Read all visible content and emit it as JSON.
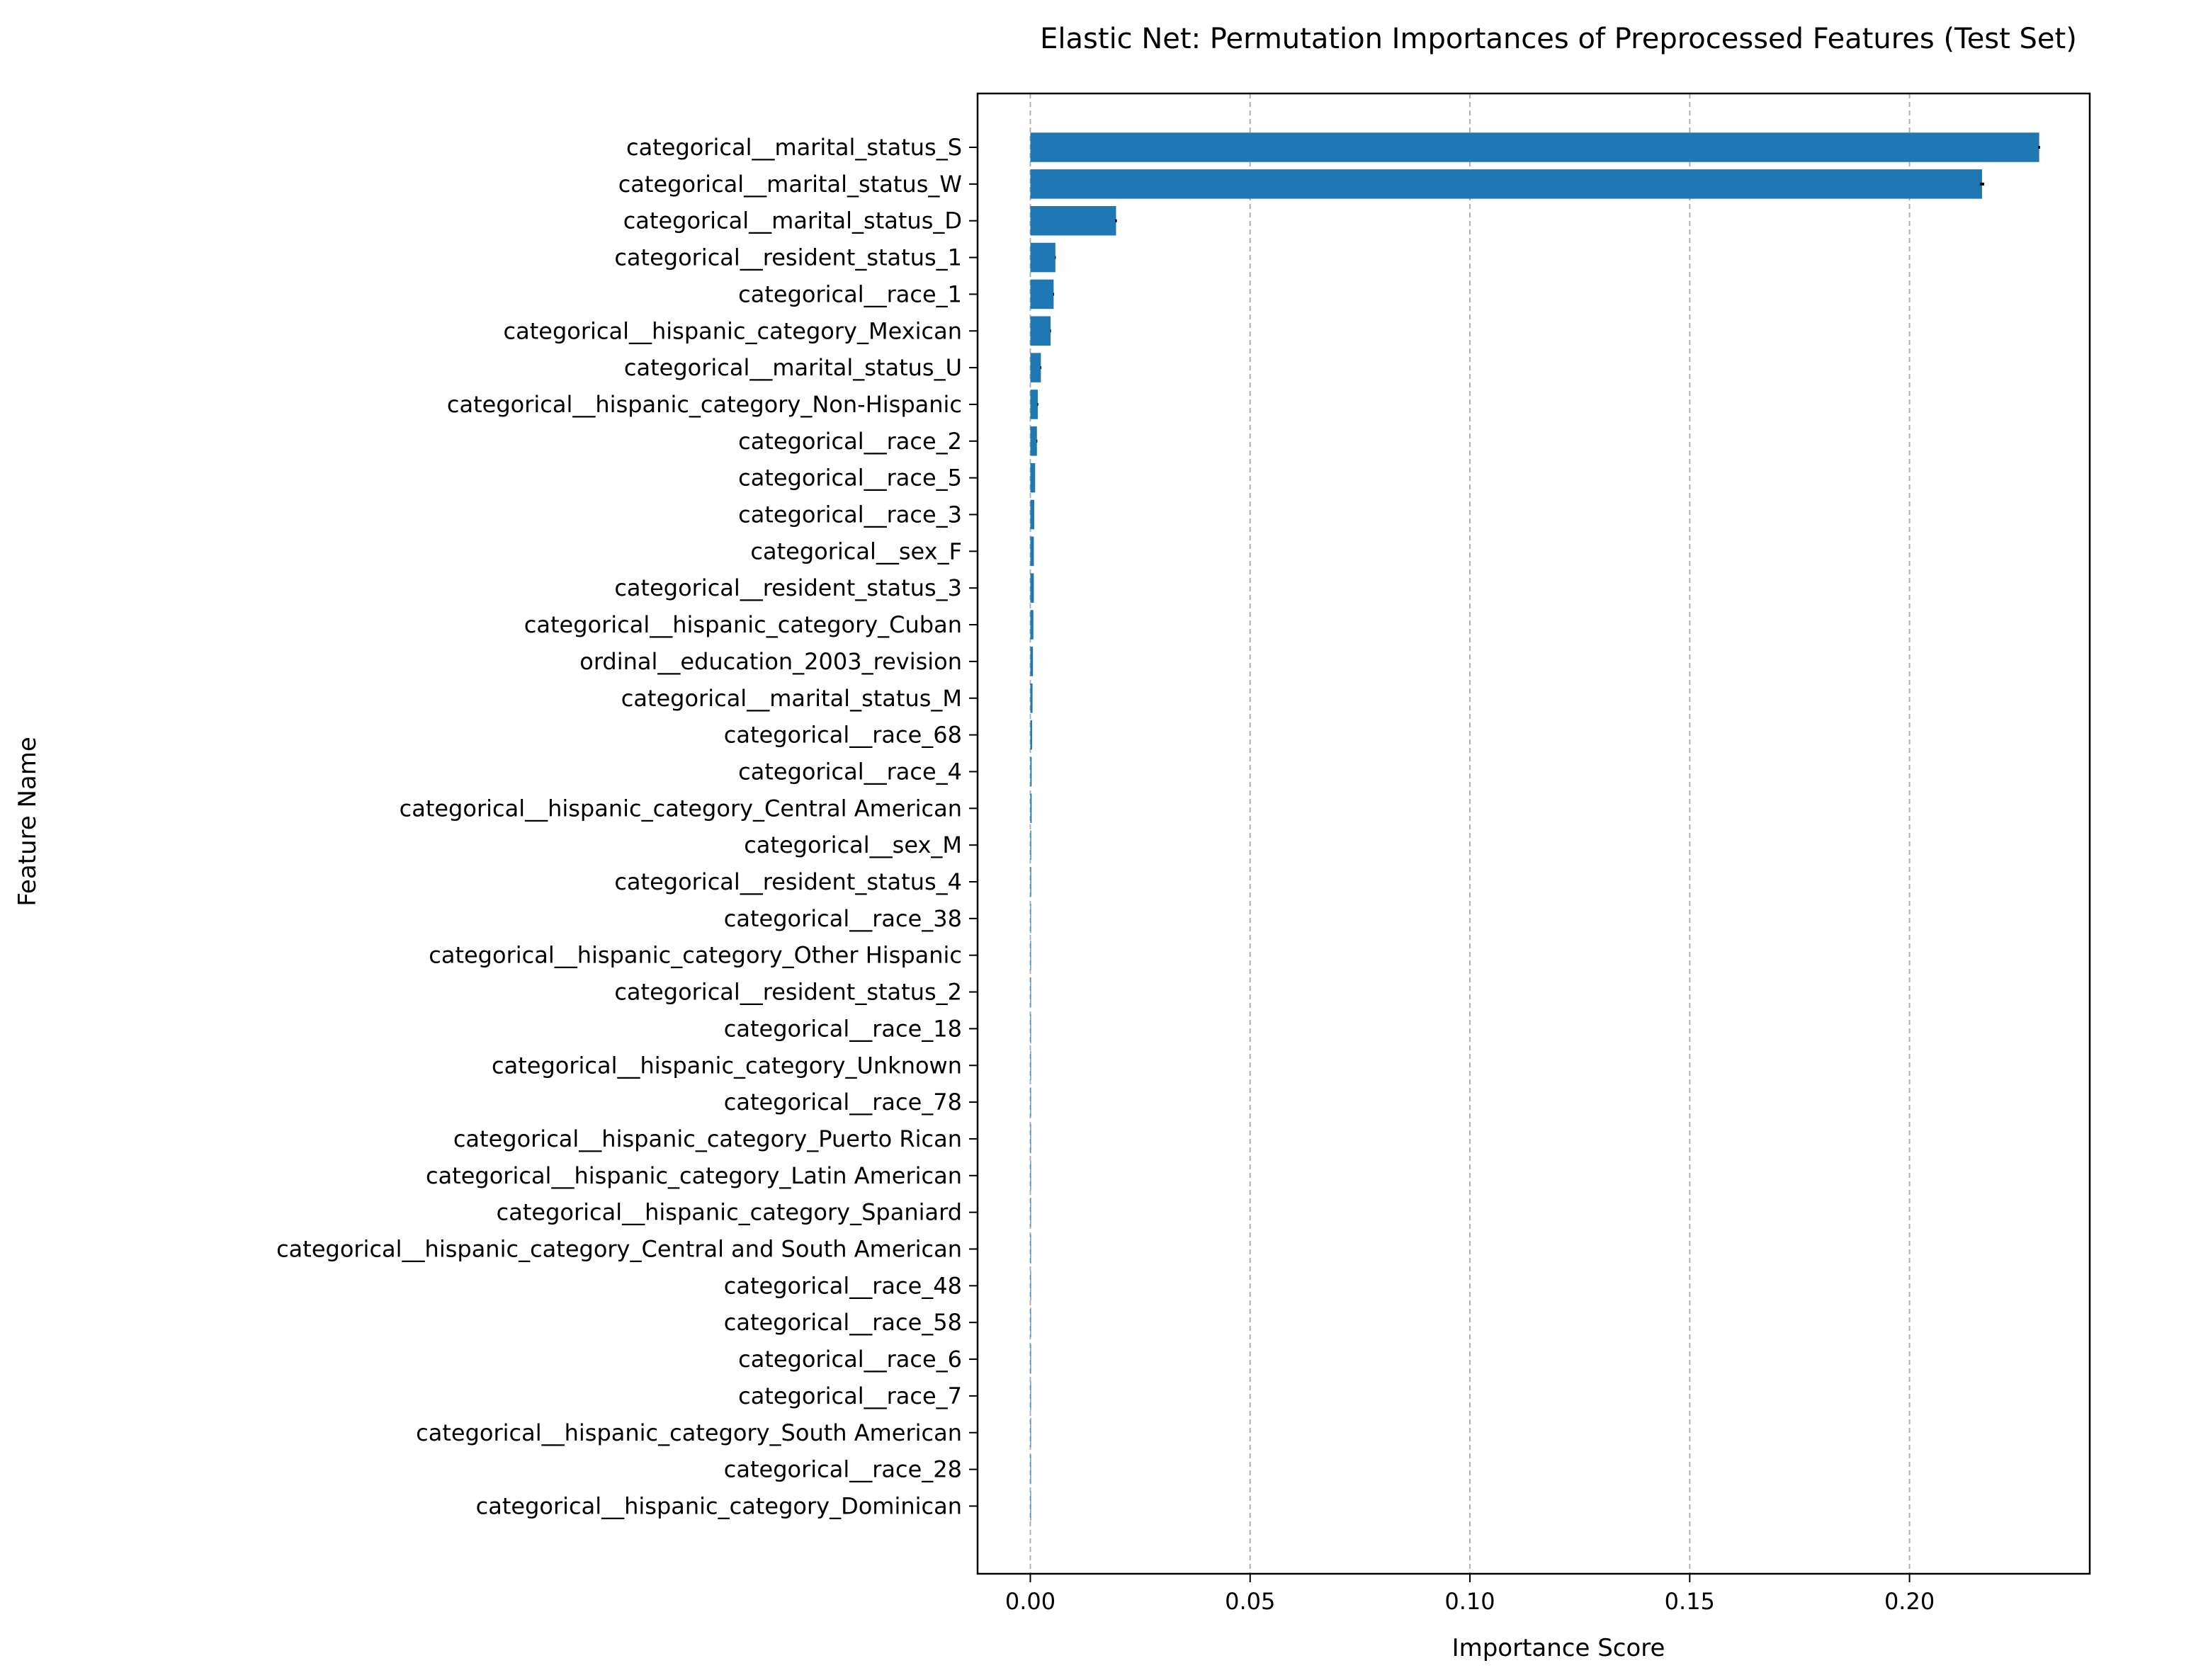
{
  "chart_data": {
    "type": "bar",
    "orientation": "horizontal",
    "title": "Elastic Net: Permutation Importances of Preprocessed Features (Test Set)",
    "xlabel": "Importance Score",
    "ylabel": "Feature Name",
    "xlim": [
      -0.012,
      0.241
    ],
    "xticks": [
      0.0,
      0.05,
      0.1,
      0.15,
      0.2
    ],
    "xtick_labels": [
      "0.00",
      "0.05",
      "0.10",
      "0.15",
      "0.20"
    ],
    "grid": {
      "axis": "x",
      "style": "dashed",
      "color": "#b0b0b0"
    },
    "bar_color": "#1f77b4",
    "errorbar_color": "#000000",
    "categories": [
      "categorical__marital_status_S",
      "categorical__marital_status_W",
      "categorical__marital_status_D",
      "categorical__resident_status_1",
      "categorical__race_1",
      "categorical__hispanic_category_Mexican",
      "categorical__marital_status_U",
      "categorical__hispanic_category_Non-Hispanic",
      "categorical__race_2",
      "categorical__race_5",
      "categorical__race_3",
      "categorical__sex_F",
      "categorical__resident_status_3",
      "categorical__hispanic_category_Cuban",
      "ordinal__education_2003_revision",
      "categorical__marital_status_M",
      "categorical__race_68",
      "categorical__race_4",
      "categorical__hispanic_category_Central American",
      "categorical__sex_M",
      "categorical__resident_status_4",
      "categorical__race_38",
      "categorical__hispanic_category_Other Hispanic",
      "categorical__resident_status_2",
      "categorical__race_18",
      "categorical__hispanic_category_Unknown",
      "categorical__race_78",
      "categorical__hispanic_category_Puerto Rican",
      "categorical__hispanic_category_Latin American",
      "categorical__hispanic_category_Spaniard",
      "categorical__hispanic_category_Central and South American",
      "categorical__race_48",
      "categorical__race_58",
      "categorical__race_6",
      "categorical__race_7",
      "categorical__hispanic_category_South American",
      "categorical__race_28",
      "categorical__hispanic_category_Dominican"
    ],
    "values": [
      0.2295,
      0.2165,
      0.0195,
      0.0057,
      0.0053,
      0.0046,
      0.0024,
      0.0017,
      0.0015,
      0.0011,
      0.0009,
      0.0008,
      0.0008,
      0.0007,
      0.0006,
      0.0005,
      0.0004,
      0.0003,
      0.0003,
      0.0002,
      0.0002,
      0.0001,
      0.0001,
      0.0001,
      0.0001,
      0.0001,
      5e-05,
      4e-05,
      3e-05,
      2e-05,
      2e-05,
      1e-05,
      1e-05,
      1e-05,
      0.0,
      0.0,
      0.0,
      0.0
    ],
    "errors": [
      0.0002,
      0.0005,
      0.0002,
      0.0001,
      0.0001,
      0.0001,
      0.0001,
      0.0001,
      0.0001,
      0.0,
      0.0,
      0.0,
      0.0,
      0.0,
      0.0,
      0.0,
      0.0,
      0.0,
      0.0,
      0.0,
      0.0,
      0.0,
      0.0,
      0.0,
      0.0,
      0.0,
      0.0,
      0.0,
      0.0,
      0.0,
      0.0,
      0.0,
      0.0,
      0.0,
      0.0,
      0.0,
      0.0,
      0.0
    ]
  }
}
